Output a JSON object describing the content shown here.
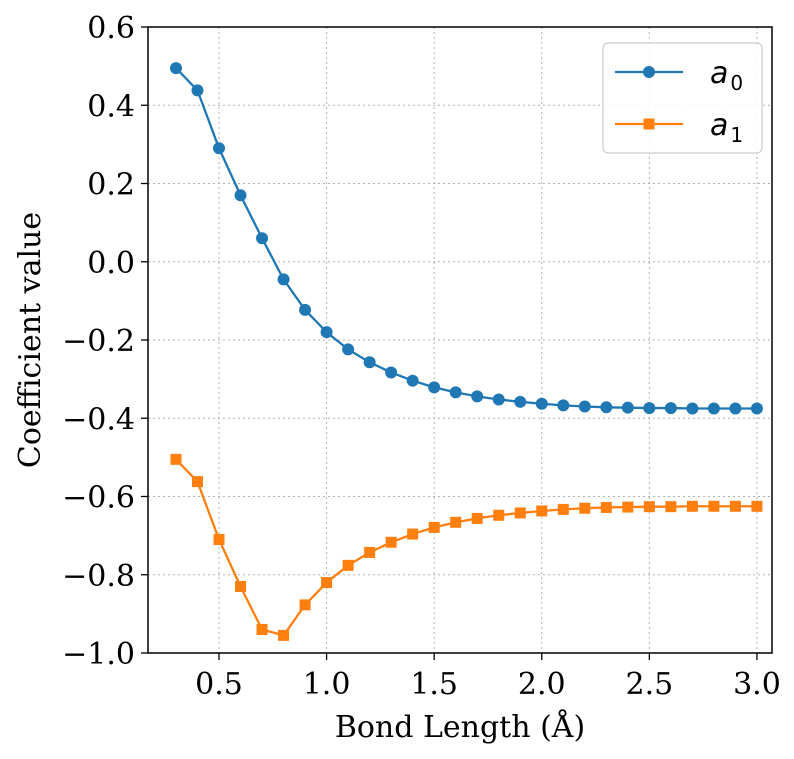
{
  "chart_data": {
    "type": "line",
    "xlabel": "Bond Length (Å)",
    "ylabel": "Coefficient value",
    "xlim": [
      0.17,
      3.07
    ],
    "ylim": [
      -1.0,
      0.6
    ],
    "xticks": [
      0.5,
      1.0,
      1.5,
      2.0,
      2.5,
      3.0
    ],
    "xtick_labels": [
      "0.5",
      "1.0",
      "1.5",
      "2.0",
      "2.5",
      "3.0"
    ],
    "yticks": [
      -1.0,
      -0.8,
      -0.6,
      -0.4,
      -0.2,
      0.0,
      0.2,
      0.4,
      0.6
    ],
    "ytick_labels": [
      "−1.0",
      "−0.8",
      "−0.6",
      "−0.4",
      "−0.2",
      "0.0",
      "0.2",
      "0.4",
      "0.6"
    ],
    "grid": true,
    "legend_position": "top-right",
    "x": [
      0.3,
      0.4,
      0.5,
      0.6,
      0.7,
      0.8,
      0.9,
      1.0,
      1.1,
      1.2,
      1.3,
      1.4,
      1.5,
      1.6,
      1.7,
      1.8,
      1.9,
      2.0,
      2.1,
      2.2,
      2.3,
      2.4,
      2.5,
      2.6,
      2.7,
      2.8,
      2.9,
      3.0
    ],
    "series": [
      {
        "name": "a",
        "subscript": "0",
        "color": "#1f77b4",
        "marker": "circle",
        "values": [
          0.495,
          0.438,
          0.29,
          0.17,
          0.06,
          -0.045,
          -0.123,
          -0.18,
          -0.224,
          -0.257,
          -0.283,
          -0.304,
          -0.321,
          -0.334,
          -0.344,
          -0.352,
          -0.358,
          -0.363,
          -0.367,
          -0.37,
          -0.372,
          -0.373,
          -0.374,
          -0.374,
          -0.375,
          -0.375,
          -0.375,
          -0.375
        ]
      },
      {
        "name": "a",
        "subscript": "1",
        "color": "#ff7f0e",
        "marker": "square",
        "values": [
          -0.505,
          -0.562,
          -0.71,
          -0.83,
          -0.94,
          -0.955,
          -0.877,
          -0.82,
          -0.776,
          -0.743,
          -0.717,
          -0.696,
          -0.679,
          -0.666,
          -0.656,
          -0.648,
          -0.642,
          -0.637,
          -0.633,
          -0.63,
          -0.628,
          -0.627,
          -0.626,
          -0.626,
          -0.625,
          -0.625,
          -0.625,
          -0.625
        ]
      }
    ]
  }
}
